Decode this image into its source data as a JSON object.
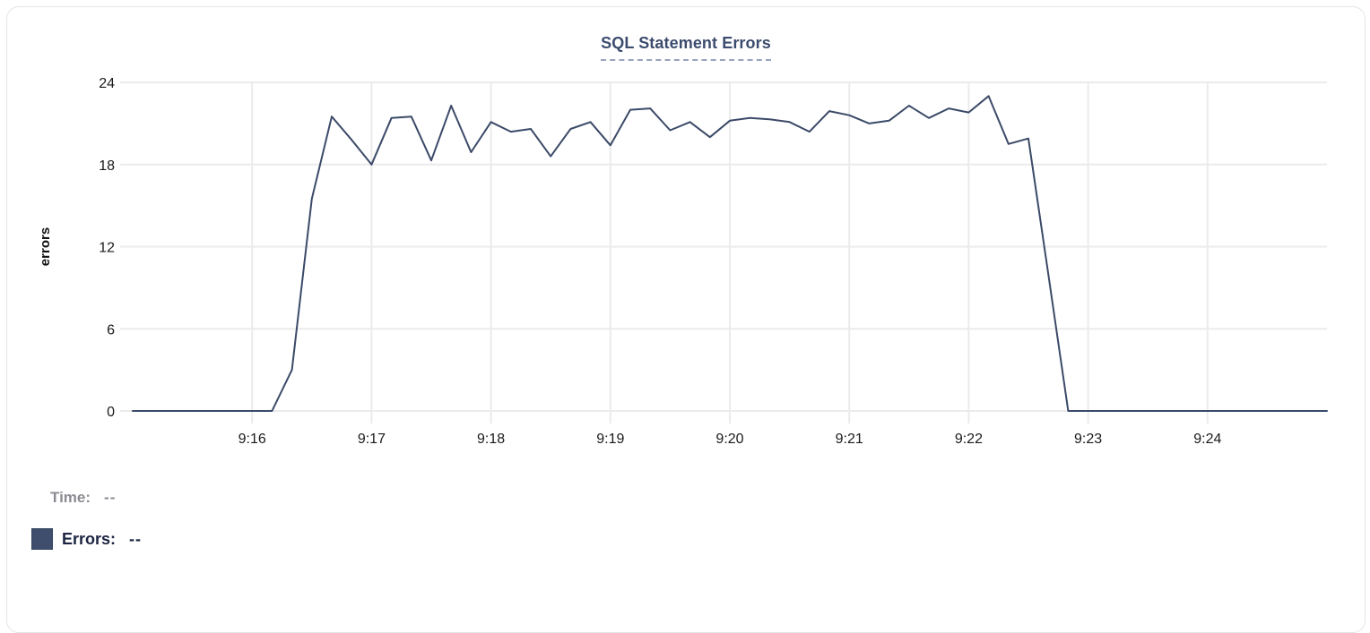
{
  "header": {
    "title": "SQL Statement Errors"
  },
  "readout": {
    "time_label": "Time:",
    "time_value": "--",
    "errors_label": "Errors:",
    "errors_value": "--"
  },
  "colors": {
    "line": "#3b4a68",
    "swatch": "#3e4e6c",
    "title": "#3c4c6e",
    "title_underline": "#98a2bf",
    "grid": "#ebebeb",
    "axis_text": "#1a1a1a",
    "muted_text": "#8b8b93",
    "legend_text": "#1b2340",
    "card_border": "#e5e5e8"
  },
  "chart_data": {
    "type": "line",
    "title": "SQL Statement Errors",
    "xlabel": "",
    "ylabel": "errors",
    "ylim": [
      0,
      24
    ],
    "y_ticks": [
      0,
      6,
      12,
      18,
      24
    ],
    "x_tick_labels": [
      "9:16",
      "9:17",
      "9:18",
      "9:19",
      "9:20",
      "9:21",
      "9:22",
      "9:23",
      "9:24"
    ],
    "x_axis_span": [
      "9:15:00",
      "9:25:00"
    ],
    "interval_seconds": 10,
    "grid": true,
    "legend_position": "bottom-left",
    "x": [
      "9:15:00",
      "9:15:10",
      "9:15:20",
      "9:15:30",
      "9:15:40",
      "9:15:50",
      "9:16:00",
      "9:16:10",
      "9:16:20",
      "9:16:30",
      "9:16:40",
      "9:16:50",
      "9:17:00",
      "9:17:10",
      "9:17:20",
      "9:17:30",
      "9:17:40",
      "9:17:50",
      "9:18:00",
      "9:18:10",
      "9:18:20",
      "9:18:30",
      "9:18:40",
      "9:18:50",
      "9:19:00",
      "9:19:10",
      "9:19:20",
      "9:19:30",
      "9:19:40",
      "9:19:50",
      "9:20:00",
      "9:20:10",
      "9:20:20",
      "9:20:30",
      "9:20:40",
      "9:20:50",
      "9:21:00",
      "9:21:10",
      "9:21:20",
      "9:21:30",
      "9:21:40",
      "9:21:50",
      "9:22:00",
      "9:22:10",
      "9:22:20",
      "9:22:30",
      "9:22:40",
      "9:22:50",
      "9:23:00",
      "9:23:10",
      "9:23:20",
      "9:23:30",
      "9:23:40",
      "9:23:50",
      "9:24:00",
      "9:24:10",
      "9:24:20",
      "9:24:30",
      "9:24:40",
      "9:24:50",
      "9:25:00"
    ],
    "series": [
      {
        "name": "Errors",
        "color": "#3b4a68",
        "values": [
          0,
          0,
          0,
          0,
          0,
          0,
          0,
          0,
          3,
          15.5,
          21.5,
          19.8,
          18,
          21.4,
          21.5,
          18.3,
          22.3,
          18.9,
          21.1,
          20.4,
          20.6,
          18.6,
          20.6,
          21.1,
          19.4,
          22,
          22.1,
          20.5,
          21.1,
          20,
          21.2,
          21.4,
          21.3,
          21.1,
          20.4,
          21.9,
          21.6,
          21,
          21.2,
          22.3,
          21.4,
          22.1,
          21.8,
          23,
          19.5,
          19.9,
          10,
          0,
          0,
          0,
          0,
          0,
          0,
          0,
          0,
          0,
          0,
          0,
          0,
          0,
          0
        ]
      }
    ]
  }
}
